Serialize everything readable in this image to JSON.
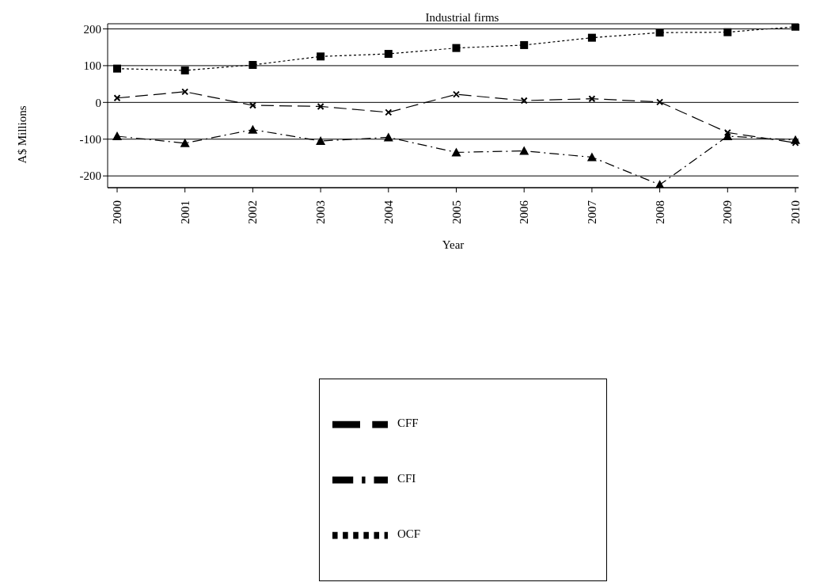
{
  "chart_data": {
    "type": "line",
    "title": "Industrial firms",
    "xlabel": "Year",
    "ylabel": "A$ Millions",
    "categories": [
      "2000",
      "2001",
      "2002",
      "2003",
      "2004",
      "2005",
      "2006",
      "2007",
      "2008",
      "2009",
      "2010"
    ],
    "series": [
      {
        "name": "OCF",
        "color": "#000000",
        "marker": "square",
        "line_style": "dotted",
        "values": [
          92,
          87,
          102,
          125,
          132,
          148,
          156,
          176,
          190,
          191,
          206
        ]
      },
      {
        "name": "CFI",
        "color": "#000000",
        "marker": "triangle",
        "line_style": "dashdot",
        "values": [
          -92,
          -111,
          -74,
          -105,
          -95,
          -136,
          -132,
          -149,
          -224,
          -92,
          -102
        ]
      },
      {
        "name": "CFF",
        "color": "#000000",
        "marker": "cross",
        "line_style": "dashed",
        "values": [
          12,
          29,
          -8,
          -11,
          -27,
          22,
          5,
          10,
          1,
          -82,
          -110
        ]
      }
    ],
    "ylim": [
      -232,
      214
    ],
    "yticks": [
      -200,
      -100,
      0,
      100,
      200
    ],
    "grid": "y",
    "legend": "bottom"
  }
}
